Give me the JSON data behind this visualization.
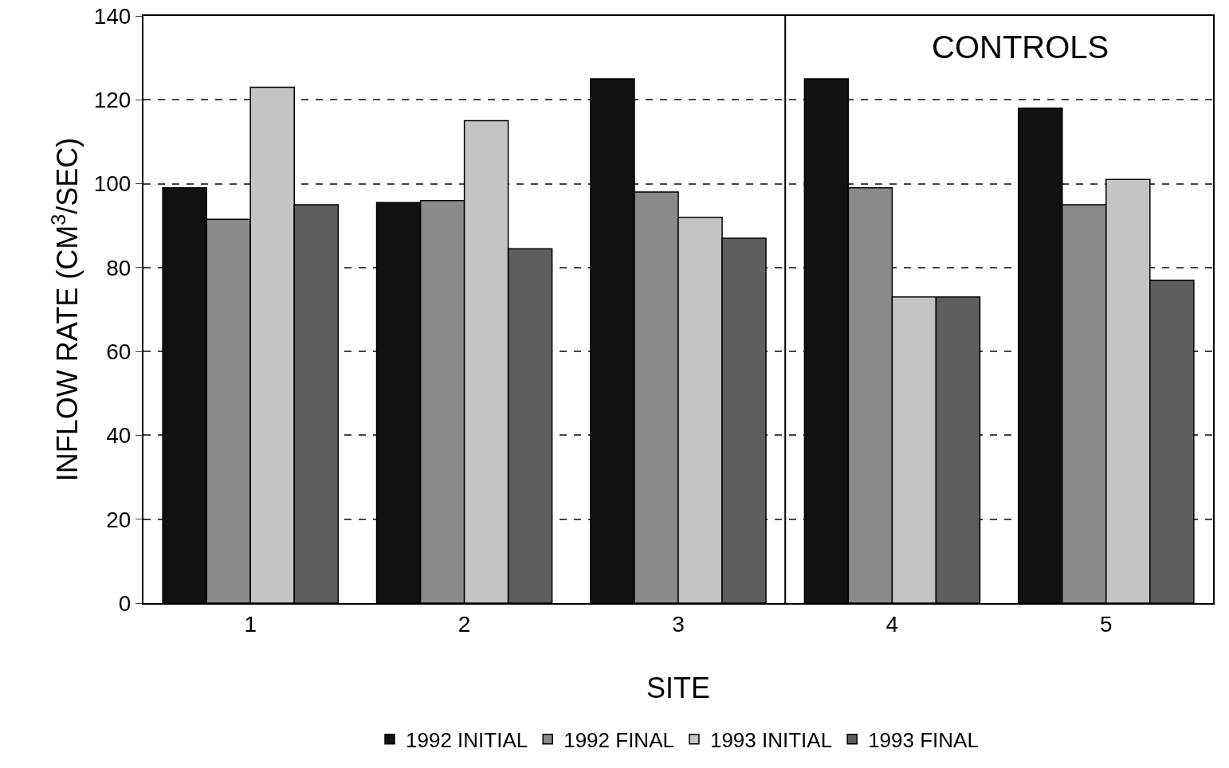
{
  "chart_data": {
    "type": "bar",
    "xlabel": "SITE",
    "ylabel": "INFLOW RATE (CM$^{3}$/SEC)",
    "x": [
      1,
      2,
      3,
      4,
      5
    ],
    "xlim": [
      0.5,
      5.5
    ],
    "xticks": [
      1,
      2,
      3,
      4,
      5
    ],
    "ylim": [
      0,
      140
    ],
    "yticks": [
      0,
      20,
      40,
      60,
      80,
      100,
      120,
      140
    ],
    "series": [
      {
        "name": "1992 INITIAL",
        "color": "#111111",
        "values": [
          99,
          95.5,
          125,
          125,
          118
        ]
      },
      {
        "name": "1992 FINAL",
        "color": "#8a8a8a",
        "values": [
          91.5,
          96,
          98,
          99,
          95
        ]
      },
      {
        "name": "1993 INITIAL",
        "color": "#c4c4c4",
        "values": [
          123,
          115,
          92,
          73,
          101
        ]
      },
      {
        "name": "1993 FINAL",
        "color": "#5e5e5e",
        "values": [
          95,
          84.5,
          87,
          73,
          77
        ]
      }
    ],
    "ref_lines": [
      {
        "axis": "x",
        "value": 3.5,
        "color": "#000000"
      }
    ],
    "annotations": [
      "CONTROLS"
    ],
    "grid": "y",
    "legend": "bottom"
  }
}
